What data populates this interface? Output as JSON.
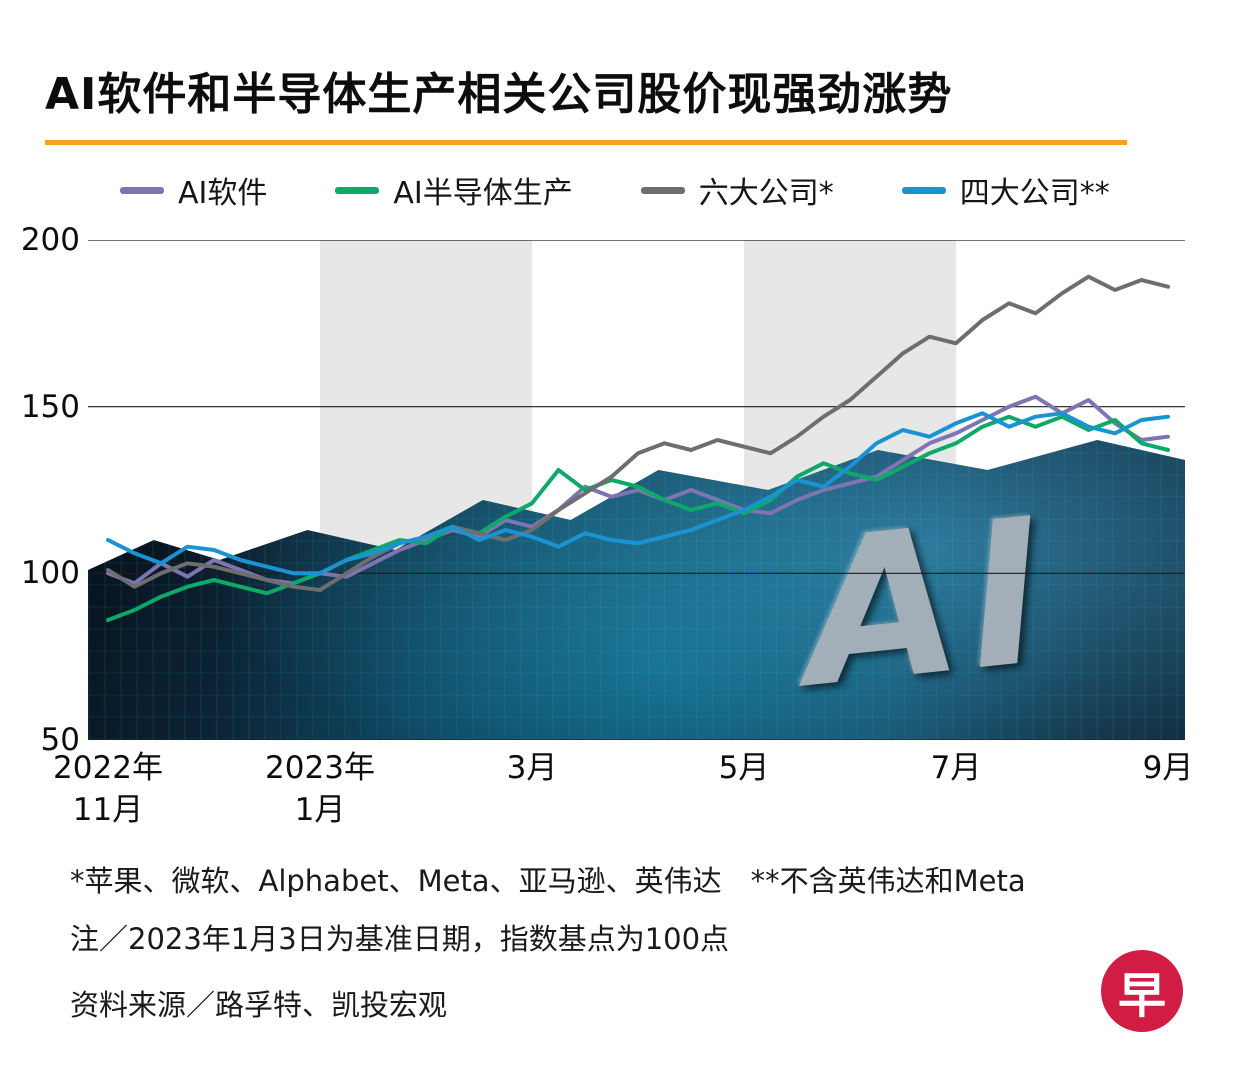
{
  "title": "AI软件和半导体生产相关公司股价现强劲涨势",
  "accent_colors": {
    "title_rule": "#f6a21d",
    "shaded_band": "#e7e7e7",
    "logo_red": "#d11c44"
  },
  "background": {
    "watermark": "AI"
  },
  "chart_data": {
    "type": "line",
    "title": "AI软件和半导体生产相关公司股价现强劲涨势",
    "ylim": [
      50,
      200
    ],
    "y_ticks": [
      200,
      150,
      100,
      50
    ],
    "grid": "horizontal",
    "legend_position": "top",
    "x_unit": "months from Nov 2022 to Sep 2023, indexed to 100 on 2023-01-03",
    "x_ticks": [
      {
        "month": 0,
        "line1": "2022年",
        "line2": "11月"
      },
      {
        "month": 2,
        "line1": "2023年",
        "line2": "1月"
      },
      {
        "month": 4,
        "line1": "3月"
      },
      {
        "month": 6,
        "line1": "5月"
      },
      {
        "month": 8,
        "line1": "7月"
      },
      {
        "month": 10,
        "line1": "9月"
      }
    ],
    "shaded_band_months": [
      [
        2,
        4
      ],
      [
        6,
        8
      ]
    ],
    "series": [
      {
        "id": "ai-software",
        "name": "AI软件",
        "color": "#7f74b2",
        "values": [
          100,
          97,
          103,
          99,
          104,
          101,
          98,
          97,
          100,
          99,
          103,
          107,
          110,
          113,
          111,
          116,
          114,
          119,
          126,
          123,
          125,
          122,
          125,
          122,
          119,
          118,
          122,
          125,
          127,
          129,
          134,
          139,
          142,
          146,
          150,
          153,
          148,
          152,
          145,
          140,
          141
        ]
      },
      {
        "id": "ai-semiconductor",
        "name": "AI半导体生产",
        "color": "#0ea868",
        "values": [
          86,
          89,
          93,
          96,
          98,
          96,
          94,
          97,
          100,
          104,
          107,
          110,
          109,
          114,
          112,
          117,
          121,
          131,
          125,
          128,
          126,
          122,
          119,
          121,
          118,
          122,
          129,
          133,
          130,
          128,
          132,
          136,
          139,
          144,
          147,
          144,
          147,
          143,
          146,
          139,
          137
        ]
      },
      {
        "id": "big-six",
        "name": "六大公司*",
        "color": "#6e6e6e",
        "values": [
          101,
          96,
          100,
          103,
          102,
          100,
          98,
          96,
          95,
          100,
          105,
          109,
          111,
          114,
          112,
          110,
          113,
          119,
          124,
          129,
          136,
          139,
          137,
          140,
          138,
          136,
          141,
          147,
          152,
          159,
          166,
          171,
          169,
          176,
          181,
          178,
          184,
          189,
          185,
          188,
          186
        ]
      },
      {
        "id": "big-four",
        "name": "四大公司**",
        "color": "#1a93d2",
        "values": [
          110,
          106,
          103,
          108,
          107,
          104,
          102,
          100,
          100,
          104,
          106,
          109,
          111,
          114,
          110,
          113,
          111,
          108,
          112,
          110,
          109,
          111,
          113,
          116,
          119,
          123,
          128,
          126,
          132,
          139,
          143,
          141,
          145,
          148,
          144,
          147,
          148,
          144,
          142,
          146,
          147
        ]
      }
    ]
  },
  "footnotes": {
    "line1": "*苹果、微软、Alphabet、Meta、亚马逊、英伟达　**不含英伟达和Meta",
    "line2": "注／2023年1月3日为基准日期，指数基点为100点",
    "source": "资料来源／路孚特、凯投宏观"
  },
  "logo": {
    "char": "早"
  }
}
